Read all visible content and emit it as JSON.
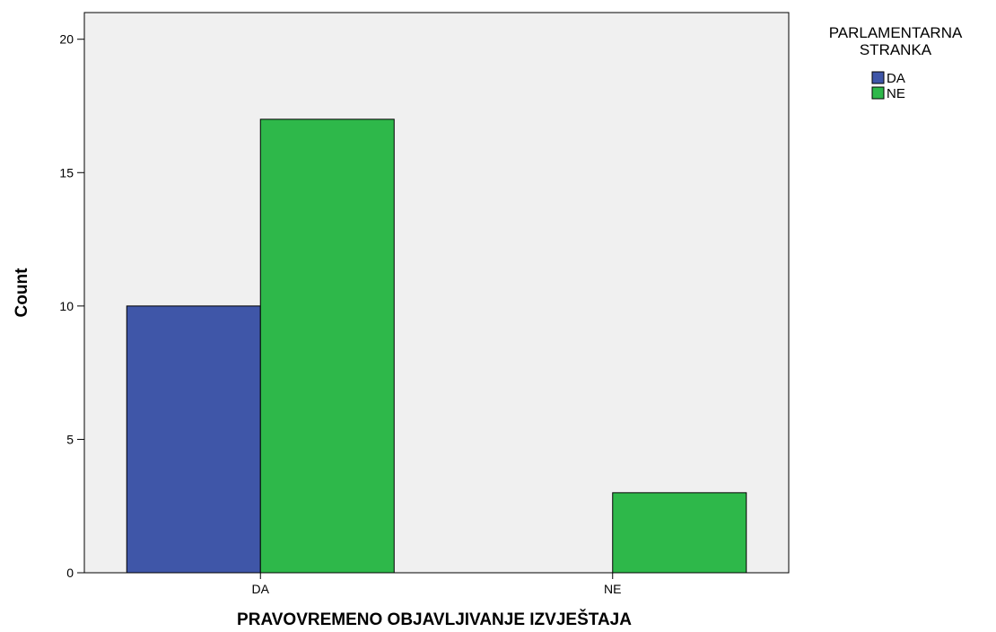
{
  "chart_data": {
    "type": "bar",
    "categories": [
      "DA",
      "NE"
    ],
    "series": [
      {
        "name": "DA",
        "values": [
          10,
          0
        ]
      },
      {
        "name": "NE",
        "values": [
          17,
          3
        ]
      }
    ],
    "title": "",
    "xlabel": "PRAVOVREMENO OBJAVLJIVANJE IZVJEŠTAJA",
    "ylabel": "Count",
    "ylim": [
      0,
      21
    ],
    "yticks": [
      0,
      5,
      10,
      15,
      20
    ],
    "grid": false,
    "legend": {
      "title_lines": [
        "PARLAMENTARNA",
        "STRANKA"
      ],
      "placement": "top-right, outside plot"
    },
    "colors": {
      "DA": "#3f56a8",
      "NE": "#2eb84a",
      "plot_background": "#f0f0f0"
    }
  }
}
